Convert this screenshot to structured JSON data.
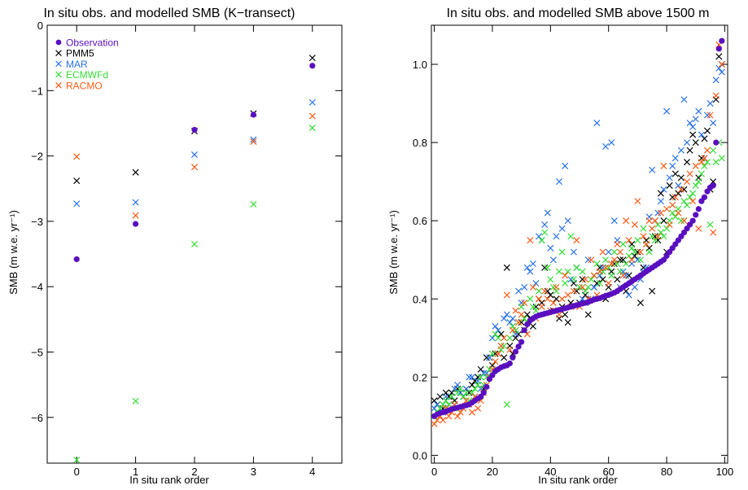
{
  "colors": {
    "Observation": "#5a0fbf",
    "PMM5": "#000000",
    "MAR": "#2a72e8",
    "ECMWFd": "#33dd33",
    "RACMO": "#ff5a14"
  },
  "chart_data": [
    {
      "type": "scatter",
      "title": "In situ obs. and modelled SMB (K−transect)",
      "xlabel": "In situ rank order",
      "ylabel": "SMB (m w.e. yr⁻¹)",
      "xlim": [
        -0.5,
        4.5
      ],
      "ylim": [
        -6.7,
        0
      ],
      "xticks": [
        0,
        1,
        2,
        3,
        4
      ],
      "yticks": [
        -6,
        -5,
        -4,
        -3,
        -2,
        -1,
        0
      ],
      "legend": "top-left",
      "series": [
        {
          "name": "Observation",
          "marker": "dot",
          "x": [
            0,
            1,
            2,
            3,
            4
          ],
          "y": [
            -3.58,
            -3.04,
            -1.6,
            -1.37,
            -0.62
          ]
        },
        {
          "name": "PMM5",
          "marker": "cross",
          "x": [
            0,
            1,
            2,
            3,
            4
          ],
          "y": [
            -2.38,
            -2.25,
            -1.62,
            -1.35,
            -0.5
          ]
        },
        {
          "name": "MAR",
          "marker": "cross",
          "x": [
            0,
            1,
            2,
            3,
            4
          ],
          "y": [
            -2.73,
            -2.71,
            -1.98,
            -1.75,
            -1.18
          ]
        },
        {
          "name": "ECMWFd",
          "marker": "cross",
          "x": [
            0,
            1,
            2,
            3,
            4
          ],
          "y": [
            -6.65,
            -5.75,
            -3.35,
            -2.74,
            -1.57
          ]
        },
        {
          "name": "RACMO",
          "marker": "cross",
          "x": [
            0,
            1,
            2,
            3,
            4
          ],
          "y": [
            -2.01,
            -2.91,
            -2.17,
            -1.78,
            -1.39
          ]
        }
      ]
    },
    {
      "type": "scatter",
      "title": "In situ obs. and modelled SMB above 1500 m",
      "xlabel": "In situ rank order",
      "ylabel": "SMB (m w.e. yr⁻¹)",
      "xlim": [
        -1,
        101
      ],
      "ylim": [
        -0.02,
        1.1
      ],
      "xticks": [
        0,
        20,
        40,
        60,
        80,
        100
      ],
      "yticks": [
        0.0,
        0.2,
        0.4,
        0.6,
        0.8,
        1.0
      ],
      "yticklabels": [
        "0.0",
        "0.2",
        "0.4",
        "0.6",
        "0.8",
        "1.0"
      ],
      "series": [
        {
          "name": "Observation",
          "marker": "dot",
          "x_start": 0,
          "y": [
            0.1,
            0.105,
            0.108,
            0.11,
            0.112,
            0.115,
            0.118,
            0.12,
            0.122,
            0.124,
            0.126,
            0.128,
            0.13,
            0.135,
            0.14,
            0.145,
            0.15,
            0.16,
            0.175,
            0.195,
            0.205,
            0.215,
            0.22,
            0.225,
            0.228,
            0.23,
            0.235,
            0.25,
            0.265,
            0.278,
            0.29,
            0.32,
            0.335,
            0.345,
            0.35,
            0.355,
            0.358,
            0.36,
            0.362,
            0.364,
            0.366,
            0.368,
            0.37,
            0.372,
            0.374,
            0.376,
            0.378,
            0.38,
            0.382,
            0.384,
            0.386,
            0.388,
            0.39,
            0.392,
            0.395,
            0.398,
            0.4,
            0.402,
            0.405,
            0.408,
            0.41,
            0.413,
            0.416,
            0.42,
            0.425,
            0.43,
            0.435,
            0.44,
            0.445,
            0.45,
            0.455,
            0.46,
            0.465,
            0.47,
            0.475,
            0.48,
            0.485,
            0.49,
            0.495,
            0.5,
            0.51,
            0.52,
            0.53,
            0.54,
            0.55,
            0.56,
            0.57,
            0.58,
            0.59,
            0.6,
            0.615,
            0.63,
            0.65,
            0.66,
            0.675,
            0.685,
            0.69,
            0.8,
            1.04,
            1.06
          ]
        },
        {
          "name": "PMM5",
          "marker": "cross",
          "x_start": 0,
          "y": [
            0.14,
            0.13,
            0.15,
            0.12,
            0.16,
            0.15,
            0.16,
            0.14,
            0.17,
            0.16,
            0.15,
            0.17,
            0.16,
            0.18,
            0.19,
            0.2,
            0.22,
            0.17,
            0.25,
            0.25,
            0.23,
            0.26,
            0.26,
            0.31,
            0.25,
            0.48,
            0.28,
            0.26,
            0.3,
            0.31,
            0.34,
            0.32,
            0.36,
            0.35,
            0.33,
            0.38,
            0.4,
            0.39,
            0.48,
            0.42,
            0.41,
            0.37,
            0.4,
            0.35,
            0.38,
            0.36,
            0.34,
            0.39,
            0.44,
            0.42,
            0.39,
            0.45,
            0.41,
            0.36,
            0.4,
            0.43,
            0.44,
            0.48,
            0.45,
            0.4,
            0.43,
            0.47,
            0.49,
            0.45,
            0.5,
            0.5,
            0.42,
            0.46,
            0.54,
            0.51,
            0.52,
            0.39,
            0.48,
            0.55,
            0.53,
            0.42,
            0.56,
            0.55,
            0.67,
            0.6,
            0.52,
            0.69,
            0.66,
            0.72,
            0.67,
            0.71,
            0.68,
            0.75,
            0.78,
            0.82,
            0.8,
            0.71,
            0.76,
            0.81,
            0.83,
            0.68,
            0.7,
            0.91,
            1.02,
            1.0
          ]
        },
        {
          "name": "MAR",
          "marker": "cross",
          "x_start": 0,
          "y": [
            0.12,
            0.13,
            0.12,
            0.11,
            0.15,
            0.13,
            0.15,
            0.17,
            0.18,
            0.16,
            0.15,
            0.17,
            0.2,
            0.2,
            0.15,
            0.19,
            0.17,
            0.21,
            0.21,
            0.25,
            0.3,
            0.33,
            0.32,
            0.28,
            0.35,
            0.36,
            0.34,
            0.35,
            0.31,
            0.42,
            0.39,
            0.43,
            0.48,
            0.47,
            0.49,
            0.44,
            0.56,
            0.55,
            0.59,
            0.62,
            0.53,
            0.5,
            0.56,
            0.7,
            0.58,
            0.74,
            0.6,
            0.45,
            0.52,
            0.48,
            0.43,
            0.4,
            0.39,
            0.5,
            0.4,
            0.43,
            0.85,
            0.46,
            0.48,
            0.79,
            0.52,
            0.8,
            0.6,
            0.55,
            0.43,
            0.47,
            0.46,
            0.41,
            0.49,
            0.43,
            0.5,
            0.45,
            0.47,
            0.48,
            0.61,
            0.73,
            0.6,
            0.62,
            0.65,
            0.68,
            0.88,
            0.71,
            0.74,
            0.76,
            0.69,
            0.78,
            0.91,
            0.8,
            0.85,
            0.84,
            0.86,
            0.88,
            0.82,
            0.76,
            0.87,
            0.9,
            0.85,
            0.96,
            0.99,
            0.98
          ]
        },
        {
          "name": "ECMWFd",
          "marker": "cross",
          "x_start": 0,
          "y": [
            0.1,
            0.11,
            0.12,
            0.13,
            0.14,
            0.13,
            0.15,
            0.12,
            0.16,
            0.17,
            0.15,
            0.16,
            0.14,
            0.16,
            0.17,
            0.18,
            0.2,
            0.18,
            0.2,
            0.22,
            0.26,
            0.31,
            0.3,
            0.27,
            0.28,
            0.13,
            0.3,
            0.33,
            0.32,
            0.34,
            0.38,
            0.35,
            0.34,
            0.4,
            0.38,
            0.37,
            0.42,
            0.55,
            0.57,
            0.48,
            0.45,
            0.43,
            0.42,
            0.47,
            0.52,
            0.44,
            0.47,
            0.56,
            0.45,
            0.48,
            0.43,
            0.47,
            0.42,
            0.43,
            0.45,
            0.46,
            0.49,
            0.44,
            0.47,
            0.5,
            0.48,
            0.46,
            0.52,
            0.49,
            0.47,
            0.54,
            0.49,
            0.51,
            0.53,
            0.52,
            0.55,
            0.5,
            0.58,
            0.54,
            0.52,
            0.56,
            0.55,
            0.59,
            0.57,
            0.56,
            0.58,
            0.6,
            0.62,
            0.61,
            0.63,
            0.6,
            0.65,
            0.64,
            0.66,
            0.67,
            0.69,
            0.7,
            0.72,
            0.74,
            0.75,
            0.59,
            0.78,
            0.75,
            0.8,
            0.76
          ]
        },
        {
          "name": "RACMO",
          "marker": "cross",
          "x_start": 0,
          "y": [
            0.08,
            0.09,
            0.1,
            0.09,
            0.12,
            0.1,
            0.11,
            0.13,
            0.1,
            0.11,
            0.12,
            0.14,
            0.13,
            0.11,
            0.15,
            0.12,
            0.14,
            0.16,
            0.18,
            0.2,
            0.22,
            0.24,
            0.26,
            0.28,
            0.3,
            0.41,
            0.27,
            0.32,
            0.37,
            0.34,
            0.36,
            0.39,
            0.31,
            0.55,
            0.43,
            0.35,
            0.4,
            0.38,
            0.42,
            0.4,
            0.37,
            0.39,
            0.43,
            0.36,
            0.4,
            0.46,
            0.41,
            0.38,
            0.42,
            0.55,
            0.38,
            0.43,
            0.45,
            0.4,
            0.5,
            0.46,
            0.41,
            0.47,
            0.52,
            0.48,
            0.44,
            0.49,
            0.5,
            0.54,
            0.52,
            0.46,
            0.6,
            0.55,
            0.5,
            0.59,
            0.65,
            0.52,
            0.56,
            0.54,
            0.6,
            0.58,
            0.6,
            0.56,
            0.62,
            0.74,
            0.63,
            0.59,
            0.64,
            0.66,
            0.62,
            0.68,
            0.6,
            0.7,
            0.72,
            0.65,
            0.74,
            0.58,
            0.75,
            0.76,
            0.78,
            0.87,
            0.57,
            0.92,
            1.05,
            1.0
          ]
        }
      ]
    }
  ]
}
